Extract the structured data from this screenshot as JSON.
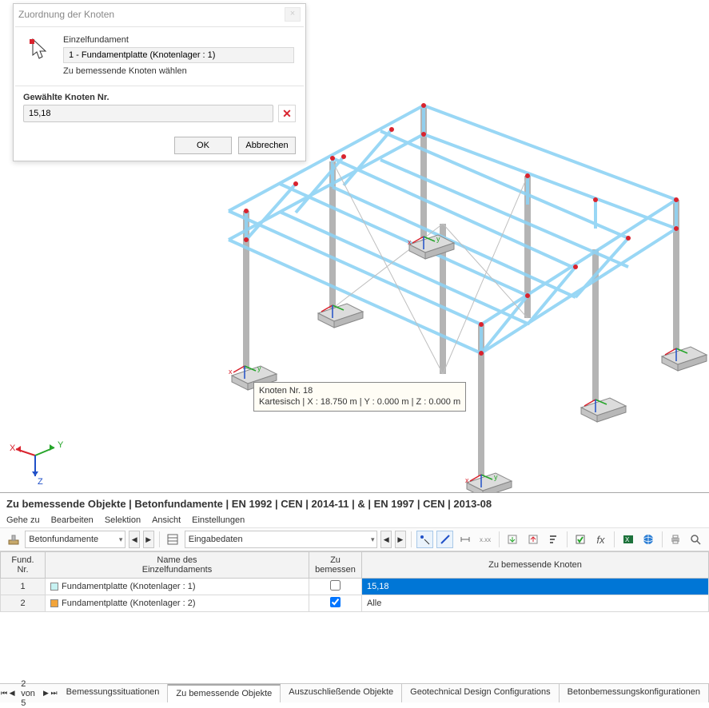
{
  "dialog": {
    "title": "Zuordnung der Knoten",
    "label_type": "Einzelfundament",
    "selected_item": "1 - Fundamentplatte (Knotenlager : 1)",
    "hint": "Zu bemessende Knoten wählen",
    "section_header": "Gewählte Knoten Nr.",
    "nodes_value": "15,18",
    "ok": "OK",
    "cancel": "Abbrechen"
  },
  "tooltip": {
    "line1": "Knoten Nr. 18",
    "line2": "Kartesisch | X : 18.750 m | Y : 0.000 m | Z : 0.000 m"
  },
  "panel": {
    "title": "Zu bemessende Objekte | Betonfundamente | EN 1992 | CEN | 2014-11 | & | EN 1997 | CEN | 2013-08",
    "menu": {
      "goto": "Gehe zu",
      "edit": "Bearbeiten",
      "select": "Selektion",
      "view": "Ansicht",
      "settings": "Einstellungen"
    },
    "combo1": "Betonfundamente",
    "combo2": "Eingabedaten",
    "columns": {
      "nr": "Fund.\nNr.",
      "name": "Name des\nEinzelfundaments",
      "design": "Zu\nbemessen",
      "nodes": "Zu bemessende Knoten"
    },
    "rows": [
      {
        "nr": "1",
        "color": "#c7f2f2",
        "name": "Fundamentplatte (Knotenlager : 1)",
        "checked": false,
        "nodes": "15,18",
        "selected": true
      },
      {
        "nr": "2",
        "color": "#f2a43a",
        "name": "Fundamentplatte (Knotenlager : 2)",
        "checked": true,
        "nodes": "Alle",
        "selected": false
      }
    ]
  },
  "tabs": {
    "counter": "2 von 5",
    "items": [
      {
        "label": "Bemessungssituationen",
        "active": false
      },
      {
        "label": "Zu bemessende Objekte",
        "active": true
      },
      {
        "label": "Auszuschließende Objekte",
        "active": false
      },
      {
        "label": "Geotechnical Design Configurations",
        "active": false
      },
      {
        "label": "Betonbemessungskonfigurationen",
        "active": false
      }
    ]
  },
  "colors": {
    "truss": "#8fd3f4",
    "column": "#c4c4c4",
    "node": "#d9232e",
    "axis_x": "#d9232e",
    "axis_y": "#26a52a",
    "axis_z": "#2050c8"
  }
}
